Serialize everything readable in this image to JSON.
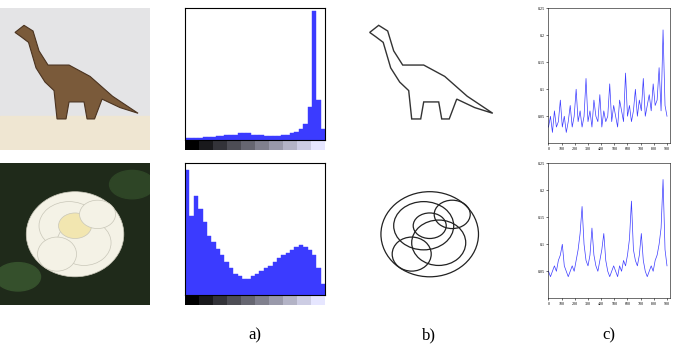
{
  "panel_labels": [
    "a)",
    "b)",
    "c)"
  ],
  "chart_data": [
    {
      "type": "histogram",
      "color": "#3b3bff",
      "bins": [
        0,
        1,
        2,
        3,
        4,
        5,
        6,
        7,
        8,
        9,
        10,
        11,
        12,
        13,
        14,
        15,
        16,
        17,
        18,
        19,
        20,
        21,
        22,
        23,
        24,
        25,
        26,
        27,
        28,
        29,
        30,
        31,
        32
      ],
      "counts": [
        1,
        1,
        1,
        1,
        2,
        2,
        2,
        3,
        3,
        4,
        4,
        4,
        5,
        5,
        5,
        4,
        4,
        4,
        3,
        3,
        3,
        3,
        4,
        4,
        5,
        6,
        8,
        12,
        25,
        98,
        30,
        8
      ],
      "xlim": [
        0,
        32
      ],
      "ylim": [
        0,
        100
      ],
      "tick_labels": false
    },
    {
      "type": "line",
      "color": "#3b3bff",
      "x": [
        0,
        15,
        30,
        45,
        60,
        75,
        90,
        105,
        120,
        135,
        150,
        165,
        180,
        195,
        210,
        225,
        240,
        255,
        270,
        285,
        300,
        315,
        330,
        345,
        360,
        375,
        390,
        405,
        420,
        435,
        450,
        465,
        480,
        495,
        510,
        525,
        540,
        555,
        570,
        585,
        600,
        615,
        630,
        645,
        660,
        675,
        690,
        705,
        720,
        735,
        750,
        765,
        780,
        795,
        810,
        825,
        840,
        855,
        870,
        885,
        900
      ],
      "values": [
        0.03,
        0.05,
        0.02,
        0.06,
        0.03,
        0.04,
        0.08,
        0.03,
        0.05,
        0.02,
        0.04,
        0.07,
        0.03,
        0.05,
        0.1,
        0.04,
        0.06,
        0.03,
        0.05,
        0.12,
        0.04,
        0.06,
        0.03,
        0.08,
        0.05,
        0.04,
        0.09,
        0.03,
        0.06,
        0.04,
        0.05,
        0.11,
        0.04,
        0.07,
        0.05,
        0.03,
        0.08,
        0.06,
        0.04,
        0.13,
        0.05,
        0.07,
        0.04,
        0.06,
        0.1,
        0.05,
        0.08,
        0.06,
        0.12,
        0.05,
        0.07,
        0.09,
        0.06,
        0.11,
        0.07,
        0.08,
        0.14,
        0.06,
        0.21,
        0.07,
        0.05
      ],
      "xlim": [
        0,
        920
      ],
      "ylim": [
        0,
        0.25
      ],
      "xticks": [
        0,
        100,
        200,
        300,
        400,
        500,
        600,
        700,
        800,
        900
      ],
      "yticks": [
        0.05,
        0.1,
        0.15,
        0.2,
        0.25
      ]
    },
    {
      "type": "histogram",
      "color": "#3b3bff",
      "bins": [
        0,
        1,
        2,
        3,
        4,
        5,
        6,
        7,
        8,
        9,
        10,
        11,
        12,
        13,
        14,
        15,
        16,
        17,
        18,
        19,
        20,
        21,
        22,
        23,
        24,
        25,
        26,
        27,
        28,
        29,
        30,
        31,
        32
      ],
      "counts": [
        95,
        60,
        75,
        65,
        55,
        45,
        40,
        35,
        30,
        25,
        20,
        16,
        14,
        12,
        12,
        14,
        16,
        18,
        20,
        22,
        25,
        28,
        30,
        32,
        34,
        36,
        38,
        36,
        34,
        30,
        20,
        8
      ],
      "xlim": [
        0,
        32
      ],
      "ylim": [
        0,
        100
      ],
      "tick_labels": false
    },
    {
      "type": "line",
      "color": "#3b3bff",
      "x": [
        0,
        15,
        30,
        45,
        60,
        75,
        90,
        105,
        120,
        135,
        150,
        165,
        180,
        195,
        210,
        225,
        240,
        255,
        270,
        285,
        300,
        315,
        330,
        345,
        360,
        375,
        390,
        405,
        420,
        435,
        450,
        465,
        480,
        495,
        510,
        525,
        540,
        555,
        570,
        585,
        600,
        615,
        630,
        645,
        660,
        675,
        690,
        705,
        720,
        735,
        750,
        765,
        780,
        795,
        810,
        825,
        840,
        855,
        870,
        885,
        900
      ],
      "values": [
        0.05,
        0.04,
        0.05,
        0.06,
        0.05,
        0.07,
        0.08,
        0.1,
        0.06,
        0.05,
        0.04,
        0.05,
        0.06,
        0.05,
        0.07,
        0.09,
        0.12,
        0.17,
        0.1,
        0.07,
        0.06,
        0.08,
        0.13,
        0.08,
        0.06,
        0.05,
        0.07,
        0.09,
        0.12,
        0.07,
        0.05,
        0.04,
        0.05,
        0.06,
        0.05,
        0.04,
        0.06,
        0.05,
        0.07,
        0.06,
        0.08,
        0.11,
        0.18,
        0.09,
        0.07,
        0.06,
        0.08,
        0.12,
        0.07,
        0.05,
        0.04,
        0.05,
        0.06,
        0.05,
        0.07,
        0.08,
        0.1,
        0.13,
        0.22,
        0.09,
        0.06
      ],
      "xlim": [
        0,
        920
      ],
      "ylim": [
        0,
        0.25
      ],
      "xticks": [
        0,
        100,
        200,
        300,
        400,
        500,
        600,
        700,
        800,
        900
      ],
      "yticks": [
        0.05,
        0.1,
        0.15,
        0.2,
        0.25
      ]
    }
  ]
}
